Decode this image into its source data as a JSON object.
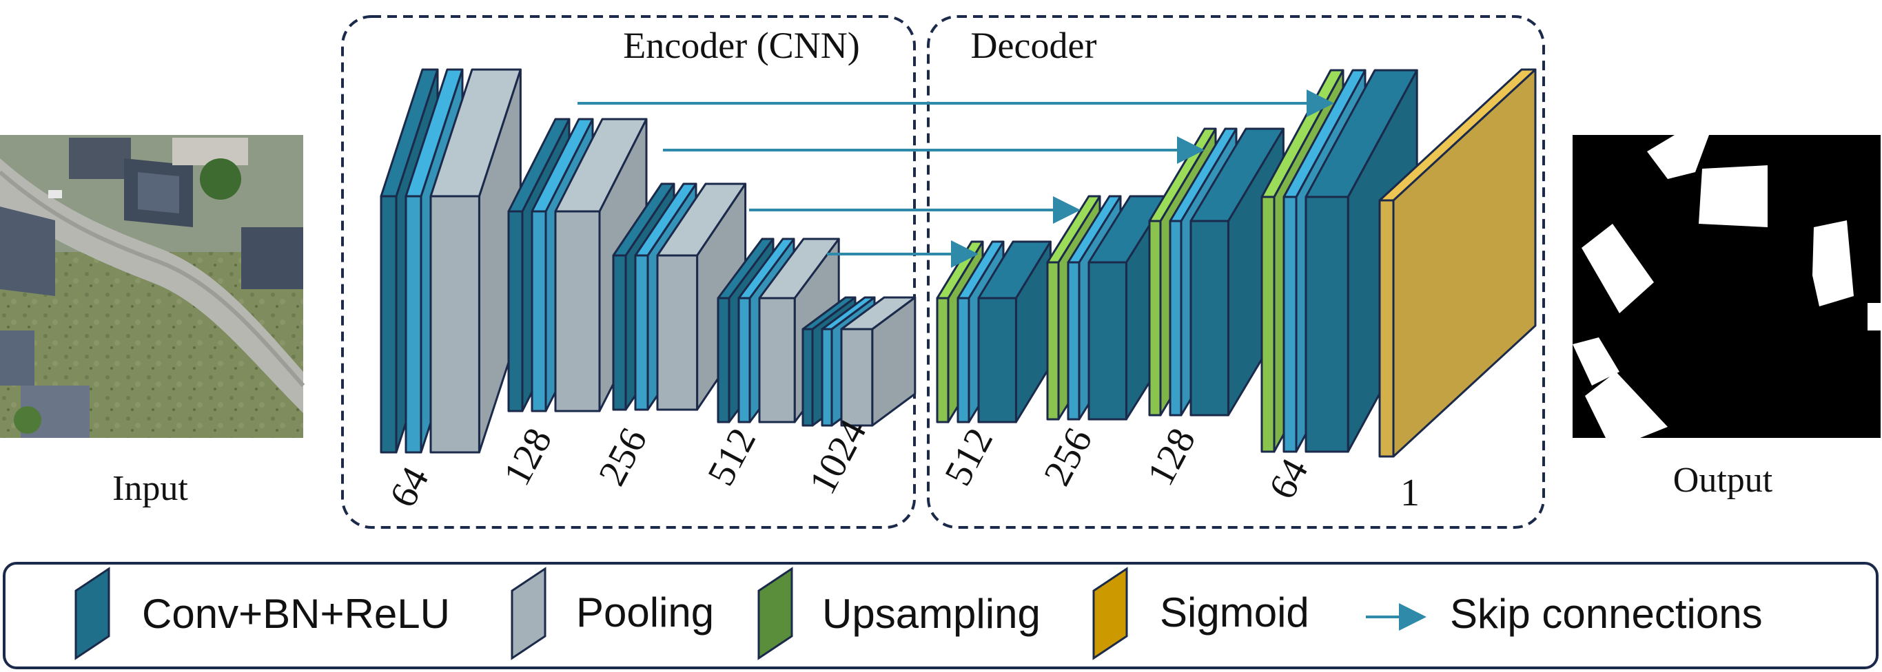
{
  "labels": {
    "input": "Input",
    "output": "Output",
    "encoder": "Encoder (CNN)",
    "decoder": "Decoder"
  },
  "encoder_channels": [
    "64",
    "128",
    "256",
    "512",
    "1024"
  ],
  "decoder_channels": [
    "512",
    "256",
    "128",
    "64",
    "1"
  ],
  "legend": {
    "conv": "Conv+BN+ReLU",
    "pooling": "Pooling",
    "upsampling": "Upsampling",
    "sigmoid": "Sigmoid",
    "skip": "Skip connections"
  },
  "colors": {
    "conv": "#1f6f8b",
    "conv_light": "#3aa0c8",
    "pooling": "#a4b1b8",
    "upsampling": "#8ac44f",
    "upsampling_legend": "#5a8e3a",
    "sigmoid": "#d4b04a",
    "sigmoid_legend": "#cc9a00",
    "outline": "#1b2a4a",
    "skip": "#2e8aa8",
    "frame": "#1b2a4a"
  }
}
